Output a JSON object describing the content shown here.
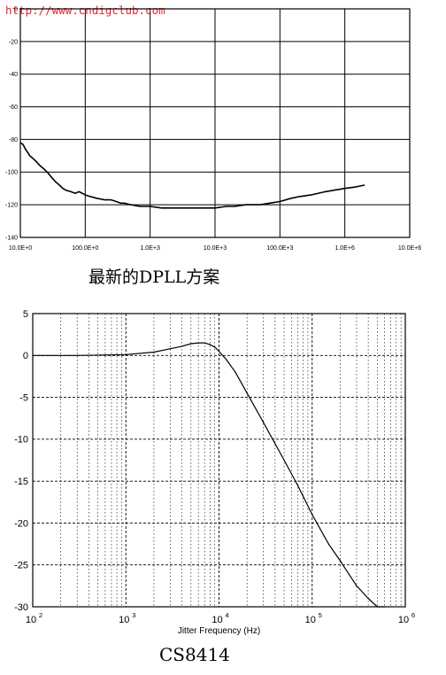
{
  "watermark": "http://www.cndigclub.com",
  "captions": {
    "top": "最新的DPLL方案",
    "bottom": "CS8414"
  },
  "chart_data": [
    {
      "type": "line",
      "title": "",
      "xlabel": "",
      "ylabel": "",
      "x_scale": "log",
      "xlim": [
        10,
        10000000
      ],
      "ylim": [
        -140,
        0
      ],
      "y_ticks": [
        0,
        -20,
        -40,
        -60,
        -80,
        -100,
        -120,
        -140
      ],
      "y_tick_labels": [
        "0",
        "-20",
        "-40",
        "-60",
        "-80",
        "-100",
        "-120",
        "-140"
      ],
      "x_ticks": [
        10,
        100,
        1000,
        10000,
        100000,
        1000000,
        10000000
      ],
      "x_tick_labels": [
        "10.0E+0",
        "100.0E+0",
        "1.0E+3",
        "10.0E+3",
        "100.0E+3",
        "1.0E+6",
        "10.0E+6"
      ],
      "grid": true,
      "series": [
        {
          "x": [
            10,
            11,
            12,
            13,
            14,
            16,
            18,
            20,
            23,
            26,
            30,
            35,
            40,
            45,
            50,
            60,
            70,
            80,
            90,
            100,
            120,
            150,
            200,
            250,
            300,
            350,
            400,
            500,
            700,
            1000,
            1500,
            2000,
            3000,
            5000,
            7000,
            10000,
            15000,
            20000,
            30000,
            50000,
            70000,
            100000,
            150000,
            200000,
            300000,
            500000,
            700000,
            1000000,
            1500000,
            2000000
          ],
          "y": [
            -82,
            -83,
            -86,
            -88,
            -90,
            -92,
            -94,
            -96,
            -98,
            -100,
            -103,
            -106,
            -108,
            -110,
            -111,
            -112,
            -113,
            -112,
            -113,
            -114,
            -115,
            -116,
            -117,
            -117,
            -118,
            -119,
            -119,
            -120,
            -121,
            -121,
            -122,
            -122,
            -122,
            -122,
            -122,
            -122,
            -121,
            -121,
            -120,
            -120,
            -119,
            -118,
            -116,
            -115,
            -114,
            -112,
            -111,
            -110,
            -109,
            -108
          ]
        }
      ]
    },
    {
      "type": "line",
      "title": "",
      "xlabel": "Jitter Frequency (Hz)",
      "ylabel": "",
      "x_scale": "log",
      "xlim": [
        100,
        1000000
      ],
      "ylim": [
        -30,
        5
      ],
      "y_ticks": [
        5,
        0,
        -5,
        -10,
        -15,
        -20,
        -25,
        -30
      ],
      "y_tick_labels": [
        "5",
        "0",
        "-5",
        "-10",
        "-15",
        "-20",
        "-25",
        "-30"
      ],
      "x_ticks": [
        100,
        1000,
        10000,
        100000,
        1000000
      ],
      "x_tick_bases": [
        "10",
        "10",
        "10",
        "10",
        "10"
      ],
      "x_tick_exponents": [
        "2",
        "3",
        "4",
        "5",
        "6"
      ],
      "grid": true,
      "series": [
        {
          "x": [
            100,
            300,
            1000,
            2000,
            3000,
            4000,
            5000,
            6000,
            7000,
            8000,
            9000,
            10000,
            12000,
            15000,
            20000,
            30000,
            50000,
            70000,
            100000,
            150000,
            200000,
            300000,
            400000,
            500000,
            600000
          ],
          "y": [
            0,
            0,
            0.1,
            0.4,
            0.8,
            1.1,
            1.4,
            1.5,
            1.5,
            1.3,
            1.0,
            0.5,
            -0.5,
            -2.0,
            -4.5,
            -8.0,
            -12.5,
            -15.5,
            -19.0,
            -22.5,
            -24.5,
            -27.5,
            -29.0,
            -30.0,
            -31.0
          ]
        }
      ]
    }
  ]
}
